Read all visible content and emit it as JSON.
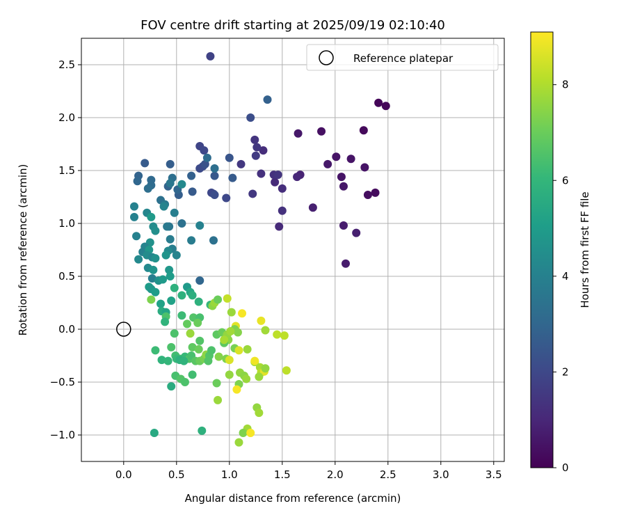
{
  "chart_data": {
    "type": "scatter",
    "title": "FOV centre drift starting at 2025/09/19 02:10:40",
    "xlabel": "Angular distance from reference (arcmin)",
    "ylabel": "Rotation from reference (arcmin)",
    "xlim": [
      -0.4,
      3.6
    ],
    "ylim": [
      -1.25,
      2.75
    ],
    "x_ticks": [
      0.0,
      0.5,
      1.0,
      1.5,
      2.0,
      2.5,
      3.0,
      3.5
    ],
    "x_tick_labels": [
      "0.0",
      "0.5",
      "1.0",
      "1.5",
      "2.0",
      "2.5",
      "3.0",
      "3.5"
    ],
    "y_ticks": [
      -1.0,
      -0.5,
      0.0,
      0.5,
      1.0,
      1.5,
      2.0,
      2.5
    ],
    "y_tick_labels": [
      "−1.0",
      "−0.5",
      "0.0",
      "0.5",
      "1.0",
      "1.5",
      "2.0",
      "2.5"
    ],
    "grid": true,
    "legend": {
      "position": "top-right",
      "entries": [
        "Reference platepar"
      ]
    },
    "reference_point": {
      "x": 0.0,
      "y": 0.0,
      "label": "Reference platepar"
    },
    "colorbar": {
      "label": "Hours from first FF file",
      "range": [
        0,
        9.1
      ],
      "ticks": [
        0,
        2,
        4,
        6,
        8
      ],
      "tick_labels": [
        "0",
        "2",
        "4",
        "6",
        "8"
      ],
      "colormap": "viridis",
      "stops": [
        "#440154",
        "#482878",
        "#3e4989",
        "#31688e",
        "#26828e",
        "#1f9e89",
        "#35b779",
        "#6ece58",
        "#b5de2b",
        "#fde725"
      ]
    },
    "points": [
      [
        2.41,
        2.14,
        0.1
      ],
      [
        2.48,
        2.11,
        0.15
      ],
      [
        2.27,
        1.88,
        0.2
      ],
      [
        2.38,
        1.29,
        0.25
      ],
      [
        2.31,
        1.27,
        0.3
      ],
      [
        1.87,
        1.87,
        0.4
      ],
      [
        1.65,
        1.85,
        0.6
      ],
      [
        2.01,
        1.63,
        0.5
      ],
      [
        2.15,
        1.61,
        0.5
      ],
      [
        1.93,
        1.56,
        0.6
      ],
      [
        2.28,
        1.53,
        0.5
      ],
      [
        2.06,
        1.44,
        0.5
      ],
      [
        2.08,
        1.35,
        0.6
      ],
      [
        1.79,
        1.15,
        0.8
      ],
      [
        2.08,
        0.98,
        0.7
      ],
      [
        2.2,
        0.91,
        0.8
      ],
      [
        2.1,
        0.62,
        0.7
      ],
      [
        1.67,
        1.46,
        0.9
      ],
      [
        1.64,
        1.44,
        1.0
      ],
      [
        1.47,
        0.97,
        1.1
      ],
      [
        1.5,
        1.12,
        1.3
      ],
      [
        1.5,
        1.33,
        1.2
      ],
      [
        1.43,
        1.39,
        1.1
      ],
      [
        1.42,
        1.46,
        1.3
      ],
      [
        1.46,
        1.46,
        1.4
      ],
      [
        1.3,
        1.47,
        1.3
      ],
      [
        1.32,
        1.69,
        1.2
      ],
      [
        1.26,
        1.72,
        1.5
      ],
      [
        1.25,
        1.64,
        1.6
      ],
      [
        1.24,
        1.79,
        1.4
      ],
      [
        1.11,
        1.56,
        1.5
      ],
      [
        1.22,
        1.28,
        1.5
      ],
      [
        0.97,
        1.24,
        2.0
      ],
      [
        1.36,
        2.17,
        2.8
      ],
      [
        1.2,
        2.0,
        2.2
      ],
      [
        0.82,
        2.58,
        1.8
      ],
      [
        0.72,
        1.73,
        1.9
      ],
      [
        0.76,
        1.69,
        2.0
      ],
      [
        0.75,
        1.54,
        2.2
      ],
      [
        0.72,
        1.52,
        2.1
      ],
      [
        0.77,
        1.56,
        2.3
      ],
      [
        0.85,
        1.28,
        2.1
      ],
      [
        0.83,
        1.29,
        2.0
      ],
      [
        0.86,
        1.27,
        2.2
      ],
      [
        0.86,
        1.45,
        2.5
      ],
      [
        1.0,
        1.62,
        2.4
      ],
      [
        1.03,
        1.43,
        2.6
      ],
      [
        0.79,
        1.62,
        3.2
      ],
      [
        0.86,
        1.52,
        3.3
      ],
      [
        0.64,
        1.45,
        2.8
      ],
      [
        0.65,
        1.3,
        2.6
      ],
      [
        0.52,
        1.27,
        2.7
      ],
      [
        0.51,
        1.32,
        3.0
      ],
      [
        0.42,
        1.35,
        2.9
      ],
      [
        0.44,
        1.56,
        2.7
      ],
      [
        0.2,
        1.57,
        2.6
      ],
      [
        0.14,
        1.45,
        2.9
      ],
      [
        0.13,
        1.4,
        3.0
      ],
      [
        0.26,
        1.41,
        3.1
      ],
      [
        0.26,
        1.36,
        3.2
      ],
      [
        0.23,
        1.33,
        3.3
      ],
      [
        0.46,
        1.43,
        3.3
      ],
      [
        0.44,
        1.38,
        3.6
      ],
      [
        0.55,
        1.37,
        4.3
      ],
      [
        0.35,
        1.22,
        3.4
      ],
      [
        0.39,
        1.18,
        3.7
      ],
      [
        0.38,
        1.16,
        4.1
      ],
      [
        0.48,
        1.1,
        3.9
      ],
      [
        0.55,
        1.0,
        3.4
      ],
      [
        0.43,
        0.97,
        3.5
      ],
      [
        0.41,
        0.97,
        3.7
      ],
      [
        0.44,
        0.85,
        3.8
      ],
      [
        0.64,
        0.84,
        3.8
      ],
      [
        0.72,
        0.98,
        4.0
      ],
      [
        0.46,
        0.76,
        3.9
      ],
      [
        0.42,
        0.74,
        4.3
      ],
      [
        0.4,
        0.7,
        4.7
      ],
      [
        0.5,
        0.7,
        4.1
      ],
      [
        0.85,
        0.84,
        3.4
      ],
      [
        0.72,
        0.46,
        3.0
      ],
      [
        0.1,
        1.16,
        4.0
      ],
      [
        0.1,
        1.06,
        4.0
      ],
      [
        0.22,
        1.1,
        4.2
      ],
      [
        0.26,
        1.06,
        4.9
      ],
      [
        0.28,
        0.97,
        4.4
      ],
      [
        0.3,
        0.93,
        4.5
      ],
      [
        0.12,
        0.88,
        4.0
      ],
      [
        0.25,
        0.82,
        4.6
      ],
      [
        0.2,
        0.78,
        4.1
      ],
      [
        0.18,
        0.73,
        4.0
      ],
      [
        0.24,
        0.75,
        4.8
      ],
      [
        0.22,
        0.7,
        4.4
      ],
      [
        0.27,
        0.68,
        4.2
      ],
      [
        0.3,
        0.67,
        4.6
      ],
      [
        0.14,
        0.66,
        4.3
      ],
      [
        0.23,
        0.58,
        4.3
      ],
      [
        0.28,
        0.56,
        4.7
      ],
      [
        0.43,
        0.56,
        4.8
      ],
      [
        0.44,
        0.5,
        5.0
      ],
      [
        0.27,
        0.48,
        3.9
      ],
      [
        0.33,
        0.46,
        4.6
      ],
      [
        0.37,
        0.47,
        4.9
      ],
      [
        0.24,
        0.4,
        5.0
      ],
      [
        0.26,
        0.38,
        4.8
      ],
      [
        0.3,
        0.35,
        5.0
      ],
      [
        0.35,
        0.24,
        5.2
      ],
      [
        0.36,
        0.17,
        5.6
      ],
      [
        0.4,
        0.16,
        5.3
      ],
      [
        0.45,
        0.27,
        5.2
      ],
      [
        0.48,
        0.39,
        5.8
      ],
      [
        0.55,
        0.32,
        5.8
      ],
      [
        0.6,
        0.4,
        4.9
      ],
      [
        0.63,
        0.35,
        5.4
      ],
      [
        0.65,
        0.32,
        5.7
      ],
      [
        0.71,
        0.26,
        5.8
      ],
      [
        0.82,
        0.23,
        6.0
      ],
      [
        0.84,
        0.22,
        7.5
      ],
      [
        0.86,
        0.25,
        7.7
      ],
      [
        0.89,
        0.28,
        7.0
      ],
      [
        0.98,
        0.29,
        8.3
      ],
      [
        1.02,
        0.16,
        7.7
      ],
      [
        1.12,
        0.15,
        9.0
      ],
      [
        1.3,
        0.08,
        8.8
      ],
      [
        1.34,
        -0.01,
        7.8
      ],
      [
        1.06,
        0.03,
        8.7
      ],
      [
        1.05,
        0.0,
        7.3
      ],
      [
        1.08,
        -0.03,
        7.4
      ],
      [
        0.26,
        0.28,
        7.3
      ],
      [
        0.4,
        0.12,
        6.5
      ],
      [
        0.55,
        0.13,
        6.2
      ],
      [
        0.66,
        0.11,
        6.6
      ],
      [
        0.72,
        0.11,
        6.4
      ],
      [
        0.7,
        0.06,
        7.0
      ],
      [
        0.6,
        0.05,
        6.9
      ],
      [
        0.39,
        0.07,
        5.9
      ],
      [
        0.48,
        -0.04,
        6.5
      ],
      [
        0.63,
        -0.04,
        7.7
      ],
      [
        0.88,
        -0.05,
        6.8
      ],
      [
        0.93,
        -0.03,
        7.0
      ],
      [
        0.97,
        -0.06,
        7.2
      ],
      [
        0.99,
        -0.1,
        7.5
      ],
      [
        0.95,
        -0.13,
        6.8
      ],
      [
        1.05,
        -0.18,
        7.2
      ],
      [
        0.72,
        -0.11,
        6.6
      ],
      [
        0.65,
        -0.17,
        6.8
      ],
      [
        0.71,
        -0.19,
        7.0
      ],
      [
        0.45,
        -0.17,
        6.5
      ],
      [
        0.49,
        -0.25,
        6.3
      ],
      [
        0.53,
        -0.28,
        6.4
      ],
      [
        0.58,
        -0.26,
        6.1
      ],
      [
        0.62,
        -0.28,
        6.6
      ],
      [
        0.64,
        -0.25,
        6.4
      ],
      [
        0.68,
        -0.3,
        6.7
      ],
      [
        0.72,
        -0.3,
        7.0
      ],
      [
        0.76,
        -0.28,
        7.2
      ],
      [
        0.78,
        -0.24,
        7.5
      ],
      [
        0.9,
        -0.26,
        7.4
      ],
      [
        0.97,
        -0.28,
        7.3
      ],
      [
        1.0,
        -0.29,
        8.6
      ],
      [
        1.09,
        -0.2,
        8.6
      ],
      [
        1.17,
        -0.19,
        7.7
      ],
      [
        1.24,
        -0.31,
        7.7
      ],
      [
        1.24,
        -0.3,
        8.9
      ],
      [
        1.29,
        -0.36,
        7.9
      ],
      [
        1.3,
        -0.41,
        8.1
      ],
      [
        1.33,
        -0.4,
        8.7
      ],
      [
        1.34,
        -0.37,
        7.6
      ],
      [
        1.28,
        -0.45,
        7.7
      ],
      [
        1.1,
        -0.41,
        7.6
      ],
      [
        1.14,
        -0.44,
        7.5
      ],
      [
        1.16,
        -0.47,
        7.7
      ],
      [
        1.09,
        -0.52,
        7.3
      ],
      [
        1.07,
        -0.57,
        9.0
      ],
      [
        1.0,
        -0.43,
        7.6
      ],
      [
        0.88,
        -0.51,
        7.0
      ],
      [
        1.45,
        -0.05,
        8.2
      ],
      [
        1.52,
        -0.06,
        8.2
      ],
      [
        1.54,
        -0.39,
        8.2
      ],
      [
        0.36,
        -0.29,
        5.9
      ],
      [
        0.42,
        -0.3,
        6.0
      ],
      [
        0.5,
        -0.28,
        6.1
      ],
      [
        0.49,
        -0.44,
        6.4
      ],
      [
        0.54,
        -0.47,
        6.6
      ],
      [
        0.58,
        -0.5,
        6.5
      ],
      [
        0.65,
        -0.43,
        6.3
      ],
      [
        0.81,
        -0.25,
        6.6
      ],
      [
        0.8,
        -0.3,
        6.6
      ],
      [
        0.83,
        -0.2,
        6.5
      ],
      [
        0.45,
        -0.54,
        5.6
      ],
      [
        0.3,
        -0.2,
        6.2
      ],
      [
        0.29,
        -0.98,
        5.5
      ],
      [
        0.74,
        -0.96,
        5.8
      ],
      [
        1.26,
        -0.74,
        7.6
      ],
      [
        1.28,
        -0.79,
        7.8
      ],
      [
        1.17,
        -0.94,
        7.8
      ],
      [
        1.13,
        -0.98,
        7.3
      ],
      [
        1.2,
        -0.98,
        9.0
      ],
      [
        1.09,
        -1.07,
        7.7
      ],
      [
        0.89,
        -0.67,
        7.7
      ],
      [
        0.53,
        -0.29,
        5.8
      ],
      [
        0.57,
        -0.3,
        5.9
      ],
      [
        0.98,
        -0.05,
        7.6
      ],
      [
        1.01,
        -0.02,
        7.8
      ],
      [
        0.95,
        -0.1,
        7.9
      ]
    ]
  }
}
